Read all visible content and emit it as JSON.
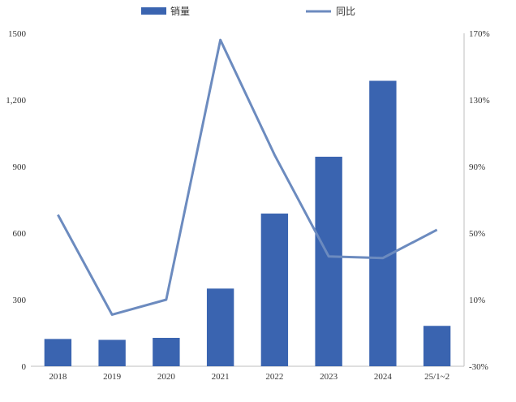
{
  "chart_data": {
    "type": "bar+line",
    "categories": [
      "2018",
      "2019",
      "2020",
      "2021",
      "2022",
      "2023",
      "2024",
      "25/1~2"
    ],
    "series": [
      {
        "name": "销量",
        "type": "bar",
        "axis": "left",
        "color": "#3a64b0",
        "values": [
          123,
          119,
          128,
          350,
          688,
          944,
          1286,
          182
        ]
      },
      {
        "name": "同比",
        "type": "line",
        "axis": "right",
        "color": "#6c8bbf",
        "values": [
          0.61,
          0.01,
          0.1,
          1.66,
          0.97,
          0.36,
          0.35,
          0.52
        ]
      }
    ],
    "y_left": {
      "ylim": [
        0,
        1500
      ],
      "ticks": [
        "0",
        "300",
        "600",
        "900",
        "1,200",
        "1500"
      ],
      "tick_values": [
        0,
        300,
        600,
        900,
        1200,
        1500
      ]
    },
    "y_right": {
      "ylim": [
        -0.3,
        1.7
      ],
      "ticks": [
        "-30%",
        "10%",
        "50%",
        "90%",
        "130%",
        "170%"
      ],
      "tick_values": [
        -0.3,
        0.1,
        0.5,
        0.9,
        1.3,
        1.7
      ]
    },
    "legend_position": "top",
    "grid": false
  }
}
